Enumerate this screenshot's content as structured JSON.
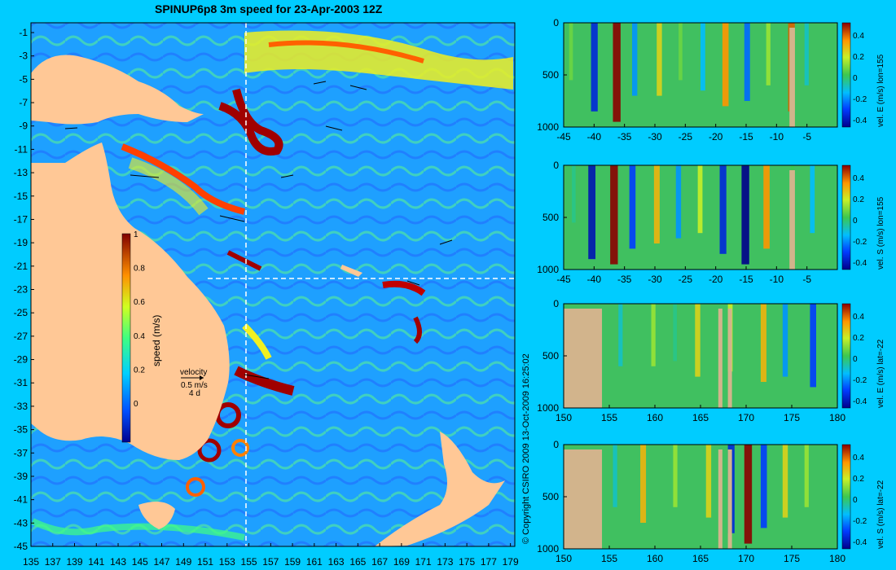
{
  "title": "SPINUP6p8 3m speed for 23-Apr-2003 12Z",
  "copyright": "© Copyright CSIRO 2009   13-Oct-2009 16:25:02",
  "map": {
    "lon_ticks": [
      "135",
      "137",
      "139",
      "141",
      "143",
      "145",
      "147",
      "149",
      "151",
      "153",
      "155",
      "157",
      "159",
      "161",
      "163",
      "165",
      "167",
      "169",
      "171",
      "173",
      "175",
      "177",
      "179"
    ],
    "lat_ticks": [
      "-1",
      "-3",
      "-5",
      "-7",
      "-9",
      "-11",
      "-13",
      "-15",
      "-17",
      "-19",
      "-21",
      "-23",
      "-25",
      "-27",
      "-29",
      "-31",
      "-33",
      "-35",
      "-37",
      "-39",
      "-41",
      "-43",
      "-45"
    ],
    "colorbar_ticks": [
      "1",
      "0.8",
      "0.6",
      "0.4",
      "0.2",
      "0"
    ],
    "colorbar_label": "speed (m/s)",
    "velocity_key": {
      "label": "velocity",
      "value": "0.5 m/s",
      "spacing": "4 d"
    },
    "section_lon": "155",
    "section_lat": "-22"
  },
  "chart_data": [
    {
      "type": "heatmap",
      "title": "",
      "ylabel": "",
      "colorbar_label": "vel. E (m/s) lon=155",
      "x_ticks": [
        "-45",
        "-40",
        "-35",
        "-30",
        "-25",
        "-20",
        "-15",
        "-10",
        "-5"
      ],
      "y_ticks": [
        "0",
        "500",
        "1000"
      ],
      "cbar_ticks": [
        "0.4",
        "0.2",
        "0",
        "-0.2",
        "-0.4"
      ],
      "xlim": [
        -45,
        0
      ],
      "ylim": [
        1000,
        0
      ]
    },
    {
      "type": "heatmap",
      "title": "",
      "ylabel": "",
      "colorbar_label": "vel. S (m/s) lon=155",
      "x_ticks": [
        "-45",
        "-40",
        "-35",
        "-30",
        "-25",
        "-20",
        "-15",
        "-10",
        "-5"
      ],
      "y_ticks": [
        "0",
        "500",
        "1000"
      ],
      "cbar_ticks": [
        "0.4",
        "0.2",
        "0",
        "-0.2",
        "-0.4"
      ],
      "xlim": [
        -45,
        0
      ],
      "ylim": [
        1000,
        0
      ]
    },
    {
      "type": "heatmap",
      "title": "",
      "ylabel": "",
      "colorbar_label": "vel. E (m/s) lat=-22",
      "x_ticks": [
        "150",
        "155",
        "160",
        "165",
        "170",
        "175",
        "180"
      ],
      "y_ticks": [
        "0",
        "500",
        "1000"
      ],
      "cbar_ticks": [
        "0.4",
        "0.2",
        "0",
        "-0.2",
        "-0.4"
      ],
      "xlim": [
        150,
        180
      ],
      "ylim": [
        1000,
        0
      ]
    },
    {
      "type": "heatmap",
      "title": "",
      "ylabel": "",
      "colorbar_label": "vel. S (m/s) lat=-22",
      "x_ticks": [
        "150",
        "155",
        "160",
        "165",
        "170",
        "175",
        "180"
      ],
      "y_ticks": [
        "0",
        "500",
        "1000"
      ],
      "cbar_ticks": [
        "0.4",
        "0.2",
        "0",
        "-0.2",
        "-0.4"
      ],
      "xlim": [
        150,
        180
      ],
      "ylim": [
        1000,
        0
      ]
    }
  ]
}
